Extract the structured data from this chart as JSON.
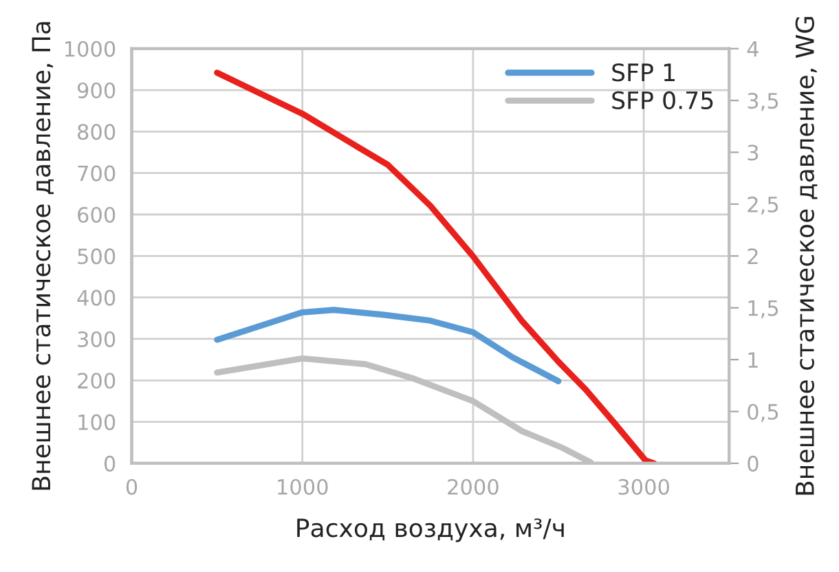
{
  "chart_data": {
    "type": "line",
    "xlabel": "Расход воздуха, м³/ч",
    "ylabel": "Внешнее статическое давление, Па",
    "y2label": "Внешнее статическое давление, WG",
    "series": [
      {
        "color": "#e8211d",
        "x": [
          500,
          1000,
          1320,
          1500,
          1750,
          2000,
          2285,
          2500,
          2660,
          2820,
          3010,
          3060
        ],
        "values": [
          942,
          843,
          764,
          720,
          621,
          499,
          344,
          245,
          178,
          101,
          7,
          0
        ]
      },
      {
        "name": "SFP 1",
        "color": "#5b9bd5",
        "x": [
          500,
          1000,
          1185,
          1480,
          1750,
          2000,
          2230,
          2500
        ],
        "values": [
          298,
          364,
          370,
          358,
          344,
          316,
          256,
          198
        ]
      },
      {
        "name": "SFP 0.75",
        "color": "#bfbfbf",
        "x": [
          500,
          1000,
          1370,
          1640,
          2000,
          2285,
          2520,
          2690
        ],
        "values": [
          219,
          253,
          239,
          206,
          150,
          78,
          38,
          2
        ]
      }
    ],
    "xlim": [
      0,
      3500
    ],
    "xticks": [
      0,
      1000,
      2000,
      3000
    ],
    "ylim": [
      0,
      1000
    ],
    "yticks": [
      0,
      100,
      200,
      300,
      400,
      500,
      600,
      700,
      800,
      900,
      1000
    ],
    "y2lim": [
      0,
      4
    ],
    "y2ticks": [
      0,
      {
        "value": 0.5,
        "label": "0,5"
      },
      1,
      {
        "value": 1.5,
        "label": "1,5"
      },
      2,
      {
        "value": 2.5,
        "label": "2,5"
      },
      3,
      {
        "value": 3.5,
        "label": "3,5"
      },
      4
    ],
    "grid": true,
    "legend": "top right",
    "marker": "none",
    "line_style": "solid"
  }
}
